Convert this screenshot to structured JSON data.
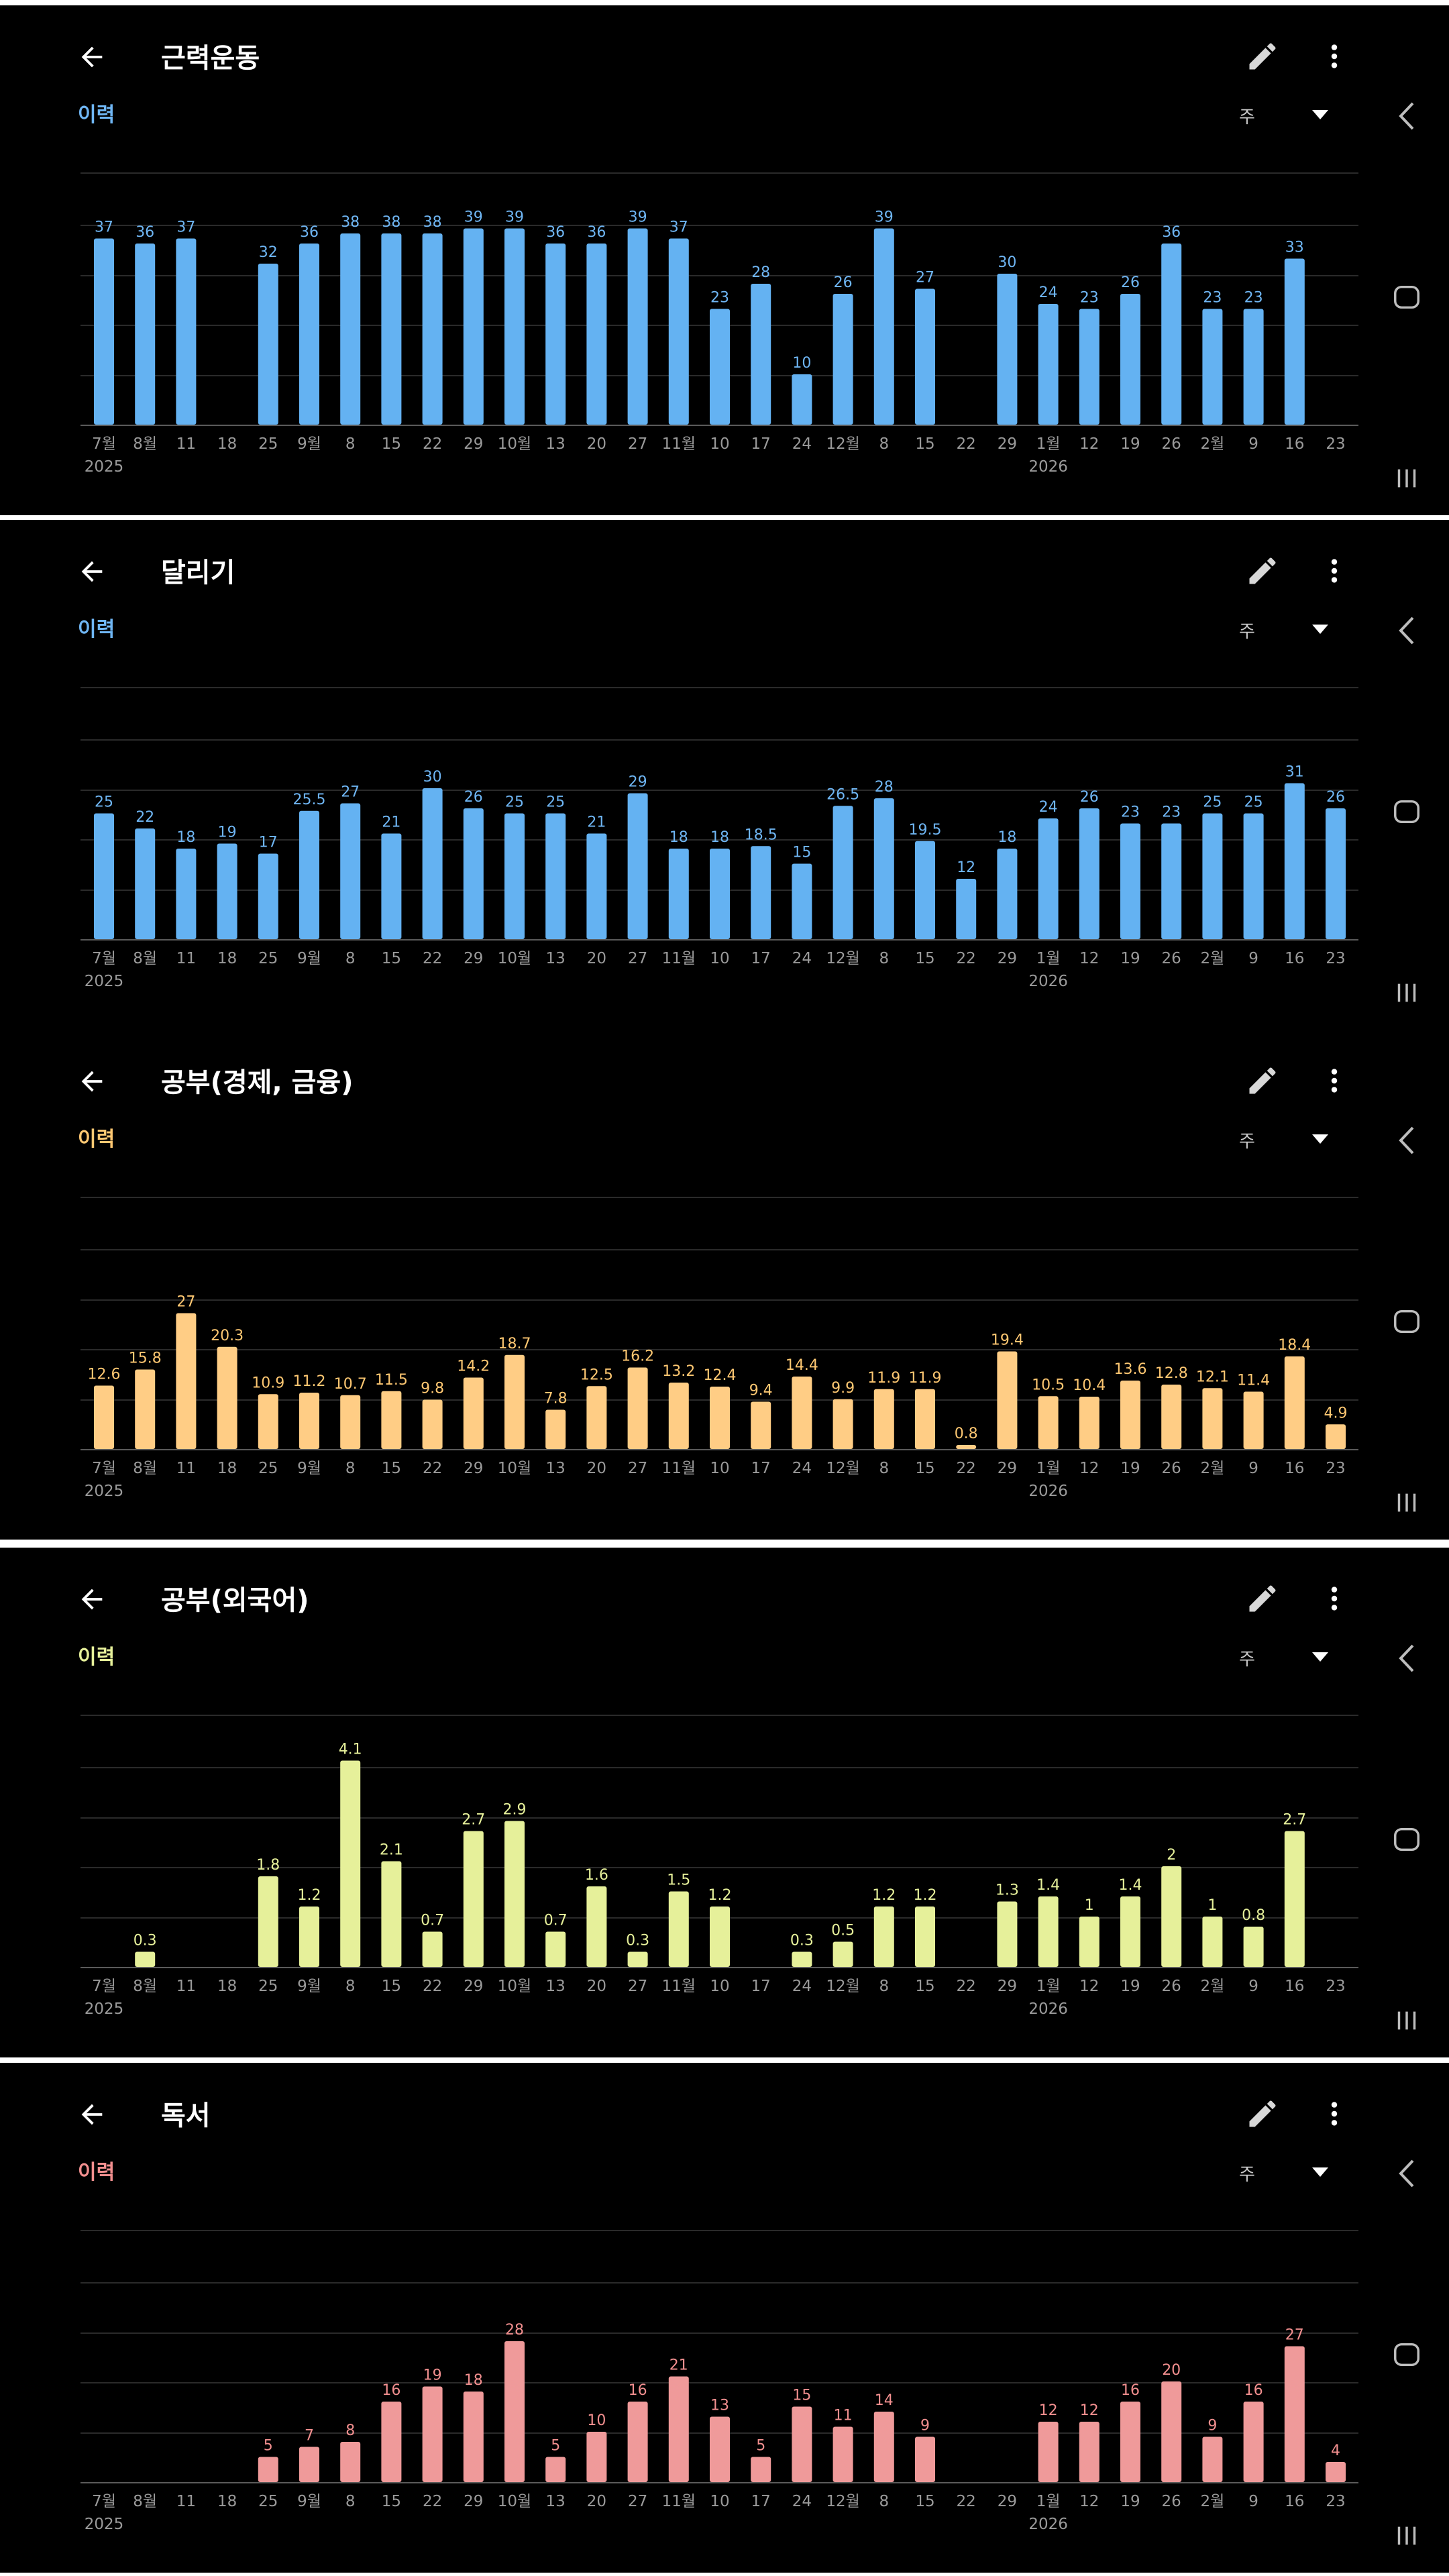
{
  "colors": {
    "background": "#000000",
    "text": "#ffffff",
    "axis_text": "#9a9a9a",
    "grid": "#2a2a2a",
    "blue": "#64b2f2",
    "blue_label": "#6fb6f4",
    "orange": "#ffcd85",
    "orange_label": "#ffc872",
    "lime": "#e6f09a",
    "lime_label": "#e6f09a",
    "pink": "#ef9a9a",
    "pink_label": "#f28f8f"
  },
  "common": {
    "history_label": "이력",
    "period_label": "주",
    "back_icon": "arrow-left-icon",
    "edit_icon": "pencil-icon",
    "more_icon": "more-vertical-icon",
    "dropdown_icon": "caret-down-icon",
    "nav_back_icon": "chevron-left-icon",
    "nav_home_icon": "home-square-icon",
    "nav_recents_icon": "recents-bars-icon"
  },
  "x_axis": {
    "ticks": [
      "7월",
      "8월",
      "11",
      "18",
      "25",
      "9월",
      "8",
      "15",
      "22",
      "29",
      "10월",
      "13",
      "20",
      "27",
      "11월",
      "10",
      "17",
      "24",
      "12월",
      "8",
      "15",
      "22",
      "29",
      "1월",
      "12",
      "19",
      "26",
      "2월",
      "9",
      "16",
      "23"
    ],
    "year_labels": [
      {
        "index": 0,
        "text": "2025"
      },
      {
        "index": 23,
        "text": "2026"
      }
    ]
  },
  "panels": [
    {
      "title": "근력운동",
      "color_key": "blue",
      "chart_data": {
        "type": "bar",
        "ylim": [
          0,
          50
        ],
        "values": [
          37,
          36,
          37,
          null,
          32,
          36,
          38,
          38,
          38,
          39,
          39,
          36,
          36,
          39,
          37,
          23,
          28,
          10,
          26,
          39,
          27,
          null,
          30,
          24,
          23,
          26,
          36,
          23,
          23,
          33,
          null
        ]
      }
    },
    {
      "title": "달리기",
      "color_key": "blue",
      "chart_data": {
        "type": "bar",
        "ylim": [
          0,
          50
        ],
        "values": [
          25,
          22,
          18,
          19,
          17,
          25.5,
          27,
          21,
          30,
          26,
          25,
          25,
          21,
          29,
          18,
          18,
          18.5,
          15,
          26.5,
          28,
          19.5,
          12,
          18,
          24,
          26,
          23,
          23,
          25,
          25,
          31,
          26
        ]
      }
    },
    {
      "title": "공부(경제, 금융)",
      "color_key": "orange",
      "chart_data": {
        "type": "bar",
        "ylim": [
          0,
          50
        ],
        "values": [
          12.6,
          15.8,
          27,
          20.3,
          10.9,
          11.2,
          10.7,
          11.5,
          9.8,
          14.2,
          18.7,
          7.8,
          12.5,
          16.2,
          13.2,
          12.4,
          9.4,
          14.4,
          9.9,
          11.9,
          11.9,
          0.8,
          19.4,
          10.5,
          10.4,
          13.6,
          12.8,
          12.1,
          11.4,
          18.4,
          4.9
        ]
      }
    },
    {
      "title": "공부(외국어)",
      "color_key": "lime",
      "chart_data": {
        "type": "bar",
        "ylim": [
          0,
          5
        ],
        "values": [
          null,
          0.3,
          null,
          null,
          1.8,
          1.2,
          4.1,
          2.1,
          0.7,
          2.7,
          2.9,
          0.7,
          1.6,
          0.3,
          1.5,
          1.2,
          null,
          0.3,
          0.5,
          1.2,
          1.2,
          null,
          1.3,
          1.4,
          1,
          1.4,
          2,
          1,
          0.8,
          2.7,
          null
        ]
      }
    },
    {
      "title": "독서",
      "color_key": "pink",
      "chart_data": {
        "type": "bar",
        "ylim": [
          0,
          50
        ],
        "values": [
          null,
          null,
          null,
          null,
          5,
          7,
          8,
          16,
          19,
          18,
          28,
          5,
          10,
          16,
          21,
          13,
          5,
          15,
          11,
          14,
          9,
          null,
          null,
          12,
          12,
          16,
          20,
          9,
          16,
          27,
          4
        ]
      }
    }
  ]
}
